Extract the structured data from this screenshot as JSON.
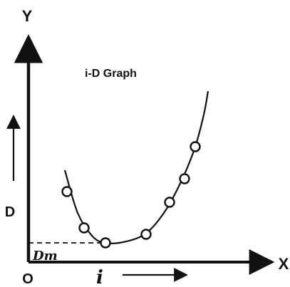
{
  "chart_data": {
    "type": "scatter",
    "title": "i-D Graph",
    "axes": {
      "y_axis_letter": "Y",
      "x_axis_letter": "X",
      "origin_label": "O",
      "xlabel": "i",
      "ylabel": "D",
      "minimum_label": "Dm"
    },
    "ylim": [
      0,
      10
    ],
    "xlim": [
      0,
      10
    ],
    "grid": false,
    "points": [
      {
        "x": 1.8,
        "y": 3.3
      },
      {
        "x": 2.6,
        "y": 1.6
      },
      {
        "x": 3.6,
        "y": 0.9
      },
      {
        "x": 5.5,
        "y": 1.3
      },
      {
        "x": 6.6,
        "y": 2.8
      },
      {
        "x": 7.3,
        "y": 3.9
      },
      {
        "x": 7.8,
        "y": 5.4
      }
    ],
    "curve": [
      {
        "x": 1.7,
        "y": 4.3
      },
      {
        "x": 2.3,
        "y": 2.3
      },
      {
        "x": 3.0,
        "y": 1.2
      },
      {
        "x": 3.6,
        "y": 0.9
      },
      {
        "x": 4.5,
        "y": 0.95
      },
      {
        "x": 5.5,
        "y": 1.35
      },
      {
        "x": 6.4,
        "y": 2.4
      },
      {
        "x": 7.2,
        "y": 3.9
      },
      {
        "x": 7.8,
        "y": 5.4
      },
      {
        "x": 8.2,
        "y": 6.9
      },
      {
        "x": 8.4,
        "y": 8.0
      }
    ],
    "minimum": {
      "x": 3.6,
      "y": 0.9
    }
  },
  "colors": {
    "ink": "#111111",
    "point_fill": "#ffffff"
  }
}
